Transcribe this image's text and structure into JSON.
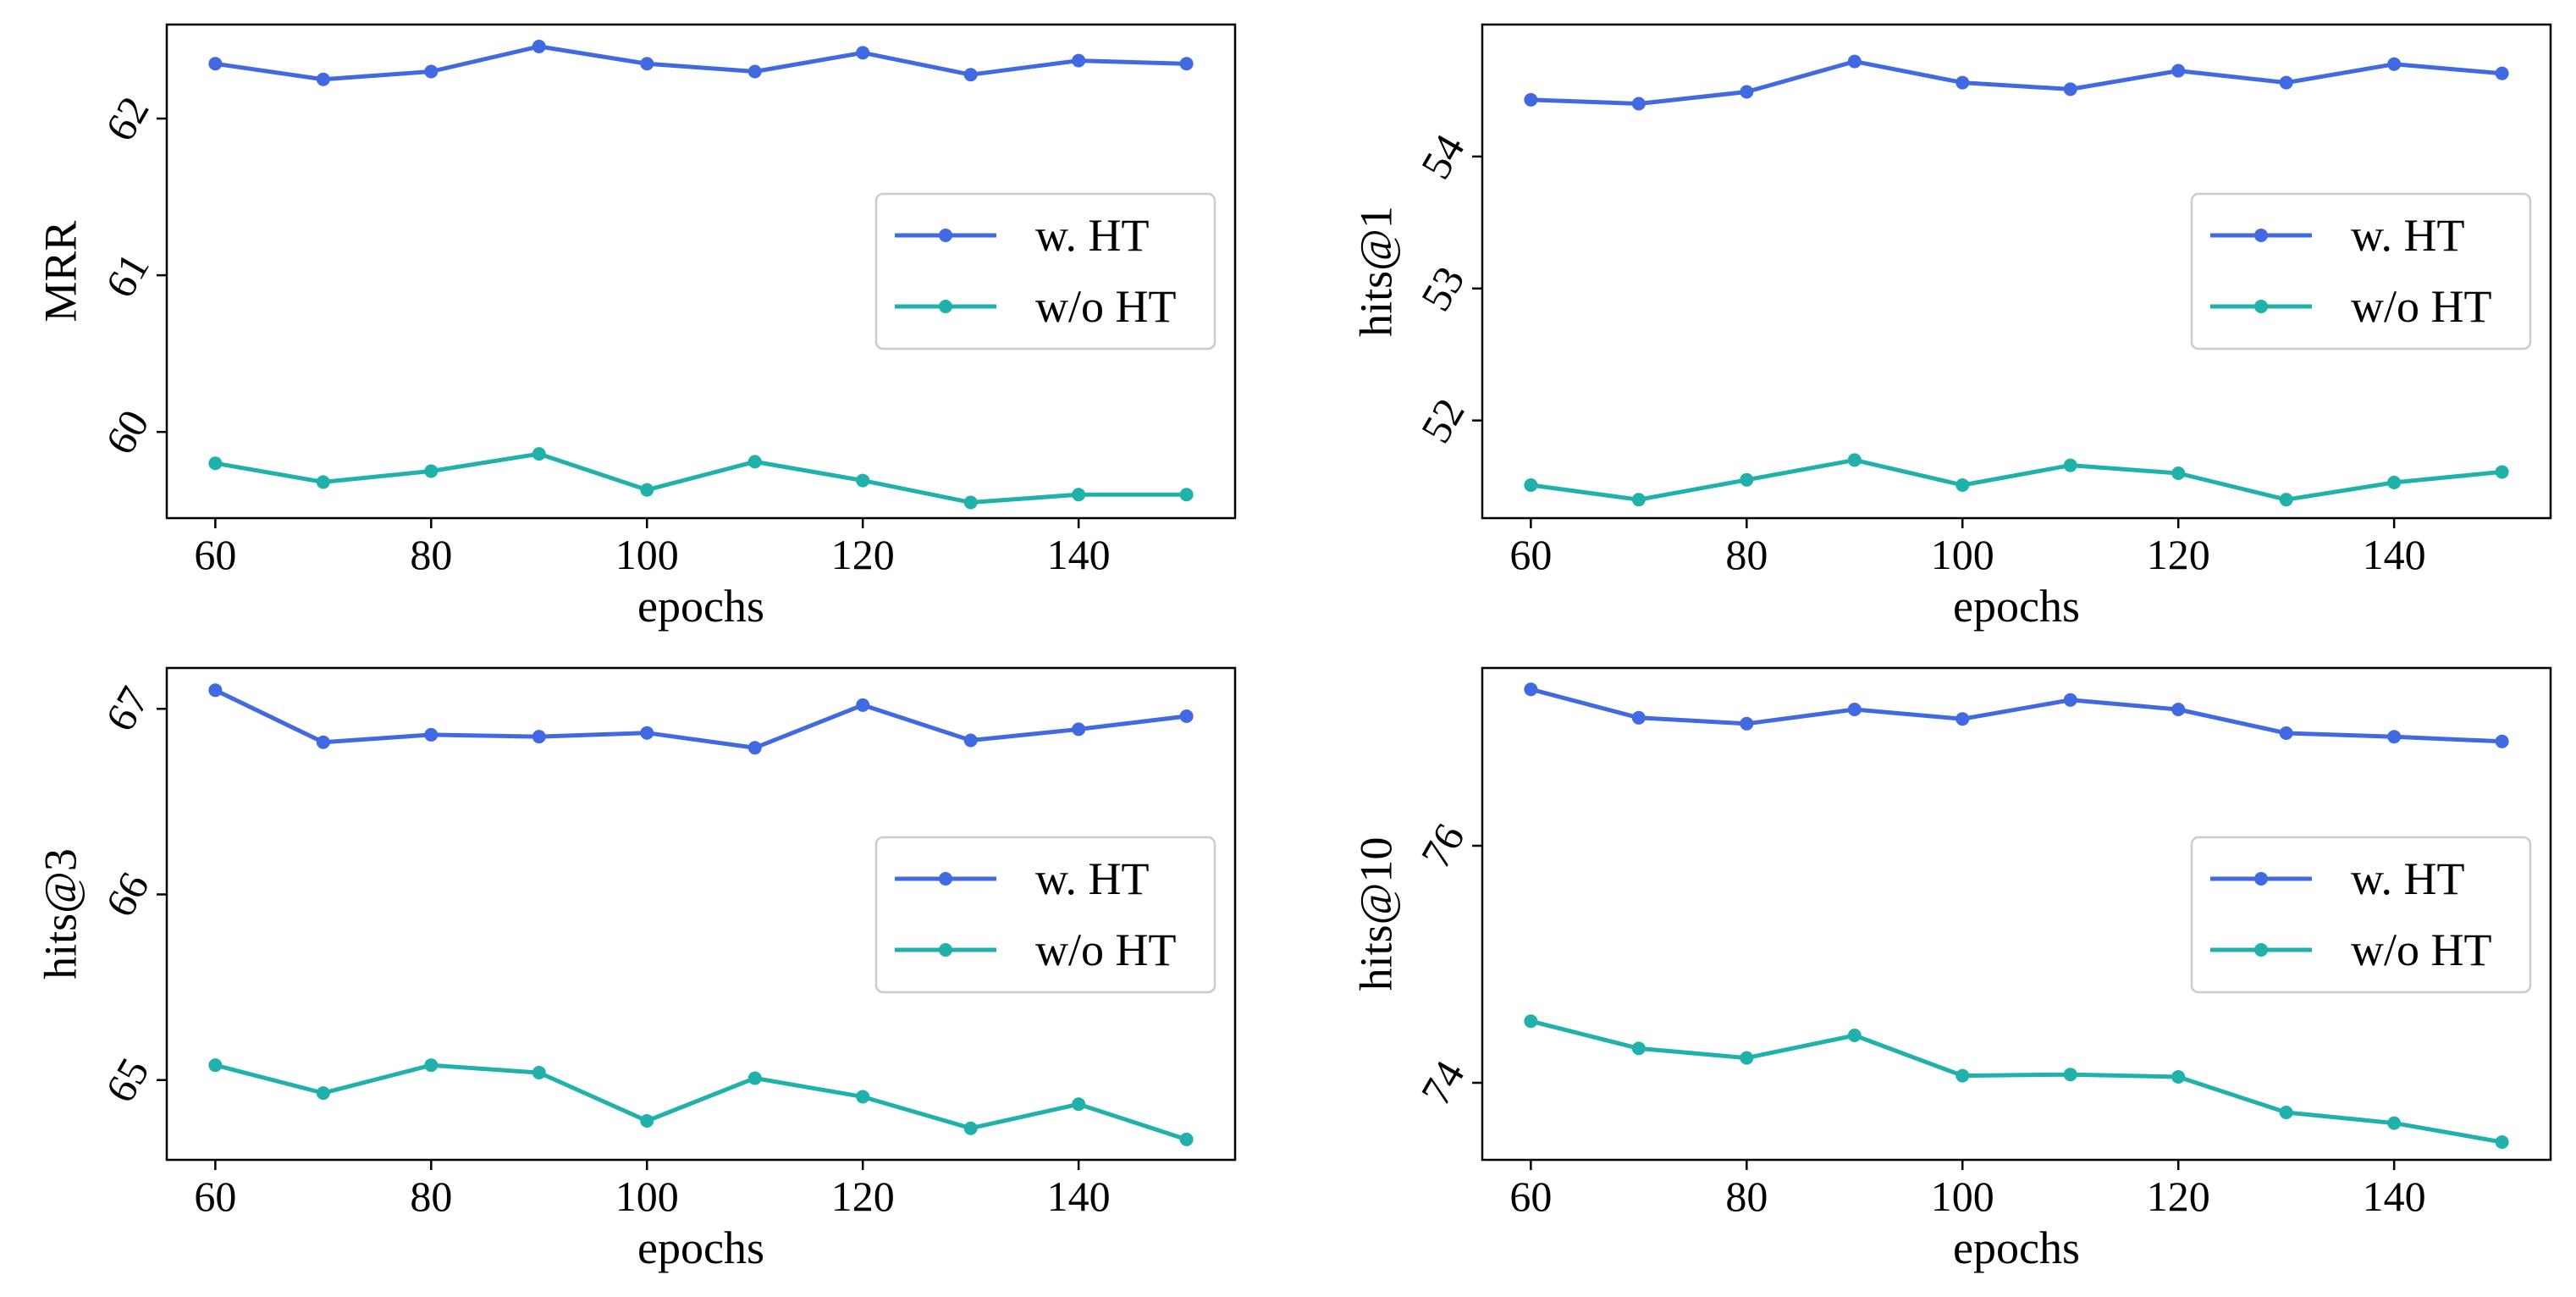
{
  "chart_data": [
    {
      "type": "line",
      "xlabel": "epochs",
      "ylabel": "MRR",
      "x": [
        60,
        70,
        80,
        90,
        100,
        110,
        120,
        130,
        140,
        150
      ],
      "xticks": [
        60,
        80,
        100,
        120,
        140
      ],
      "xlim": [
        55.5,
        154.5
      ],
      "yticks": [
        60,
        61,
        62
      ],
      "ylim": [
        59.45,
        62.6
      ],
      "grid": false,
      "legend": "center-right",
      "series": [
        {
          "name": "w. HT",
          "color": "#4169e1",
          "values": [
            62.35,
            62.25,
            62.3,
            62.46,
            62.35,
            62.3,
            62.42,
            62.28,
            62.37,
            62.35
          ]
        },
        {
          "name": "w/o HT",
          "color": "#20b2aa",
          "values": [
            59.8,
            59.68,
            59.75,
            59.86,
            59.63,
            59.81,
            59.69,
            59.55,
            59.6,
            59.6
          ]
        }
      ]
    },
    {
      "type": "line",
      "xlabel": "epochs",
      "ylabel": "hits@1",
      "x": [
        60,
        70,
        80,
        90,
        100,
        110,
        120,
        130,
        140,
        150
      ],
      "xticks": [
        60,
        80,
        100,
        120,
        140
      ],
      "xlim": [
        55.5,
        154.5
      ],
      "yticks": [
        52,
        53,
        54
      ],
      "ylim": [
        51.26,
        55.0
      ],
      "grid": false,
      "legend": "center-right",
      "series": [
        {
          "name": "w. HT",
          "color": "#4169e1",
          "values": [
            54.43,
            54.4,
            54.49,
            54.72,
            54.56,
            54.51,
            54.65,
            54.56,
            54.7,
            54.63
          ]
        },
        {
          "name": "w/o HT",
          "color": "#20b2aa",
          "values": [
            51.51,
            51.4,
            51.55,
            51.7,
            51.51,
            51.66,
            51.6,
            51.4,
            51.53,
            51.61
          ]
        }
      ]
    },
    {
      "type": "line",
      "xlabel": "epochs",
      "ylabel": "hits@3",
      "x": [
        60,
        70,
        80,
        90,
        100,
        110,
        120,
        130,
        140,
        150
      ],
      "xticks": [
        60,
        80,
        100,
        120,
        140
      ],
      "xlim": [
        55.5,
        154.5
      ],
      "yticks": [
        65,
        66,
        67
      ],
      "ylim": [
        64.57,
        67.22
      ],
      "grid": false,
      "legend": "center-right",
      "series": [
        {
          "name": "w. HT",
          "color": "#4169e1",
          "values": [
            67.1,
            66.82,
            66.86,
            66.85,
            66.87,
            66.79,
            67.02,
            66.83,
            66.89,
            66.96
          ]
        },
        {
          "name": "w/o HT",
          "color": "#20b2aa",
          "values": [
            65.08,
            64.93,
            65.08,
            65.04,
            64.78,
            65.01,
            64.91,
            64.74,
            64.87,
            64.68
          ]
        }
      ]
    },
    {
      "type": "line",
      "xlabel": "epochs",
      "ylabel": "hits@10",
      "x": [
        60,
        70,
        80,
        90,
        100,
        110,
        120,
        130,
        140,
        150
      ],
      "xticks": [
        60,
        80,
        100,
        120,
        140
      ],
      "xlim": [
        55.5,
        154.5
      ],
      "yticks": [
        74,
        76
      ],
      "ylim": [
        73.35,
        77.5
      ],
      "grid": false,
      "legend": "center-right",
      "series": [
        {
          "name": "w. HT",
          "color": "#4169e1",
          "values": [
            77.32,
            77.08,
            77.03,
            77.15,
            77.07,
            77.23,
            77.15,
            76.95,
            76.92,
            76.88
          ]
        },
        {
          "name": "w/o HT",
          "color": "#20b2aa",
          "values": [
            74.52,
            74.29,
            74.21,
            74.4,
            74.06,
            74.07,
            74.05,
            73.75,
            73.66,
            73.5
          ]
        }
      ]
    }
  ]
}
